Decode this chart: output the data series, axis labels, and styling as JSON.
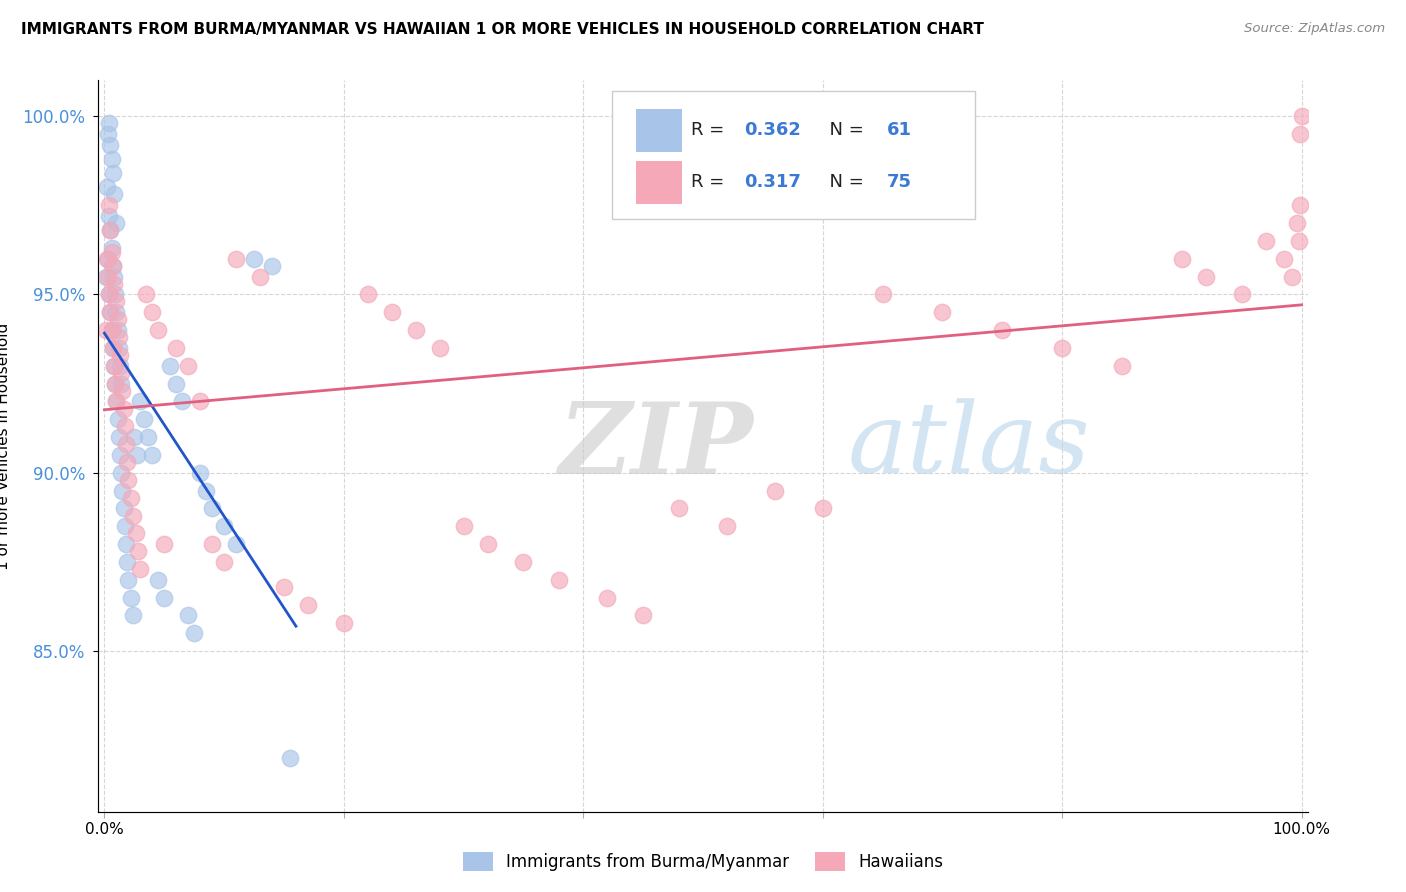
{
  "title": "IMMIGRANTS FROM BURMA/MYANMAR VS HAWAIIAN 1 OR MORE VEHICLES IN HOUSEHOLD CORRELATION CHART",
  "source": "Source: ZipAtlas.com",
  "ylabel": "1 or more Vehicles in Household",
  "blue_R": 0.362,
  "blue_N": 61,
  "pink_R": 0.317,
  "pink_N": 75,
  "blue_color": "#a8c4e8",
  "pink_color": "#f4a8b8",
  "blue_line_color": "#2255cc",
  "pink_line_color": "#e06080",
  "watermark_zip": "ZIP",
  "watermark_atlas": "atlas",
  "legend_label_blue": "Immigrants from Burma/Myanmar",
  "legend_label_pink": "Hawaiians",
  "blue_x": [
    0.001,
    0.002,
    0.003,
    0.003,
    0.004,
    0.004,
    0.004,
    0.005,
    0.005,
    0.005,
    0.006,
    0.006,
    0.006,
    0.007,
    0.007,
    0.007,
    0.008,
    0.008,
    0.008,
    0.009,
    0.009,
    0.01,
    0.01,
    0.01,
    0.011,
    0.011,
    0.012,
    0.012,
    0.013,
    0.013,
    0.014,
    0.014,
    0.015,
    0.016,
    0.017,
    0.018,
    0.019,
    0.02,
    0.022,
    0.024,
    0.025,
    0.027,
    0.03,
    0.033,
    0.036,
    0.04,
    0.045,
    0.05,
    0.055,
    0.06,
    0.065,
    0.07,
    0.075,
    0.08,
    0.085,
    0.09,
    0.1,
    0.11,
    0.125,
    0.14,
    0.155
  ],
  "blue_y": [
    0.955,
    0.98,
    0.96,
    0.995,
    0.95,
    0.972,
    0.998,
    0.945,
    0.968,
    0.992,
    0.94,
    0.963,
    0.988,
    0.935,
    0.958,
    0.984,
    0.93,
    0.955,
    0.978,
    0.925,
    0.95,
    0.92,
    0.945,
    0.97,
    0.915,
    0.94,
    0.91,
    0.935,
    0.905,
    0.93,
    0.9,
    0.925,
    0.895,
    0.89,
    0.885,
    0.88,
    0.875,
    0.87,
    0.865,
    0.86,
    0.91,
    0.905,
    0.92,
    0.915,
    0.91,
    0.905,
    0.87,
    0.865,
    0.93,
    0.925,
    0.92,
    0.86,
    0.855,
    0.9,
    0.895,
    0.89,
    0.885,
    0.88,
    0.96,
    0.958,
    0.82
  ],
  "pink_x": [
    0.001,
    0.002,
    0.003,
    0.004,
    0.004,
    0.005,
    0.005,
    0.006,
    0.006,
    0.007,
    0.007,
    0.008,
    0.008,
    0.009,
    0.01,
    0.01,
    0.011,
    0.012,
    0.013,
    0.014,
    0.015,
    0.016,
    0.017,
    0.018,
    0.019,
    0.02,
    0.022,
    0.024,
    0.026,
    0.028,
    0.03,
    0.035,
    0.04,
    0.045,
    0.05,
    0.06,
    0.07,
    0.08,
    0.09,
    0.1,
    0.11,
    0.13,
    0.15,
    0.17,
    0.2,
    0.22,
    0.24,
    0.26,
    0.28,
    0.3,
    0.32,
    0.35,
    0.38,
    0.42,
    0.45,
    0.48,
    0.52,
    0.56,
    0.6,
    0.65,
    0.7,
    0.75,
    0.8,
    0.85,
    0.9,
    0.92,
    0.95,
    0.97,
    0.985,
    0.992,
    0.996,
    0.998,
    0.999,
    1.0,
    0.999
  ],
  "pink_y": [
    0.94,
    0.96,
    0.955,
    0.95,
    0.975,
    0.945,
    0.968,
    0.94,
    0.962,
    0.935,
    0.958,
    0.93,
    0.953,
    0.925,
    0.948,
    0.92,
    0.943,
    0.938,
    0.933,
    0.928,
    0.923,
    0.918,
    0.913,
    0.908,
    0.903,
    0.898,
    0.893,
    0.888,
    0.883,
    0.878,
    0.873,
    0.95,
    0.945,
    0.94,
    0.88,
    0.935,
    0.93,
    0.92,
    0.88,
    0.875,
    0.96,
    0.955,
    0.868,
    0.863,
    0.858,
    0.95,
    0.945,
    0.94,
    0.935,
    0.885,
    0.88,
    0.875,
    0.87,
    0.865,
    0.86,
    0.89,
    0.885,
    0.895,
    0.89,
    0.95,
    0.945,
    0.94,
    0.935,
    0.93,
    0.96,
    0.955,
    0.95,
    0.965,
    0.96,
    0.955,
    0.97,
    0.965,
    0.975,
    1.0,
    0.995
  ]
}
